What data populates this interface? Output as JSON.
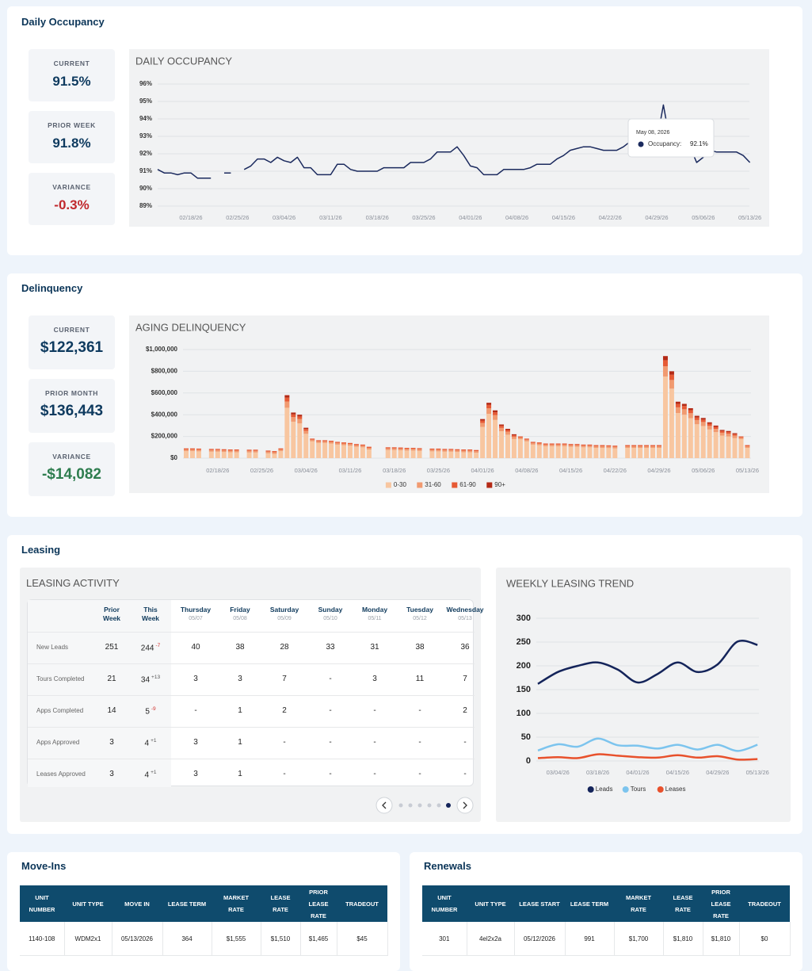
{
  "occupancy": {
    "title": "Daily Occupancy",
    "stats": [
      {
        "label": "CURRENT",
        "value": "91.5%"
      },
      {
        "label": "PRIOR WEEK",
        "value": "91.8%"
      },
      {
        "label": "VARIANCE",
        "value": "-0.3%"
      }
    ],
    "chart": {
      "type": "line",
      "title": "DAILY OCCUPANCY",
      "categories": [
        null,
        null,
        null,
        null,
        null,
        "02/18/26",
        null,
        null,
        null,
        null,
        null,
        null,
        "02/25/26",
        null,
        null,
        null,
        null,
        null,
        null,
        "03/04/26",
        null,
        null,
        null,
        null,
        null,
        null,
        "03/11/26",
        null,
        null,
        null,
        null,
        null,
        null,
        "03/18/26",
        null,
        null,
        null,
        null,
        null,
        null,
        "03/25/26",
        null,
        null,
        null,
        null,
        null,
        null,
        "04/01/26",
        null,
        null,
        null,
        null,
        null,
        null,
        "04/08/26",
        null,
        null,
        null,
        null,
        null,
        null,
        "04/15/26",
        null,
        null,
        null,
        null,
        null,
        null,
        "04/22/26",
        null,
        null,
        null,
        null,
        null,
        null,
        "04/29/26",
        null,
        null,
        null,
        null,
        null,
        null,
        "05/06/26",
        null,
        null,
        null,
        null,
        null,
        null,
        "05/13/26"
      ],
      "values": [
        91.1,
        90.9,
        90.9,
        90.8,
        90.9,
        90.9,
        90.6,
        90.6,
        90.6,
        null,
        90.9,
        90.9,
        null,
        91.1,
        91.3,
        91.7,
        91.7,
        91.5,
        91.8,
        91.6,
        91.5,
        91.8,
        91.2,
        91.2,
        90.8,
        90.8,
        90.8,
        91.4,
        91.4,
        91.1,
        91.0,
        91.0,
        91.0,
        91.0,
        91.2,
        91.2,
        91.2,
        91.2,
        91.5,
        91.5,
        91.5,
        91.7,
        92.1,
        92.1,
        92.1,
        92.4,
        91.9,
        91.3,
        91.2,
        90.8,
        90.8,
        90.8,
        91.1,
        91.1,
        91.1,
        91.1,
        91.2,
        91.4,
        91.4,
        91.4,
        91.7,
        91.9,
        92.2,
        92.3,
        92.4,
        92.4,
        92.3,
        92.2,
        92.2,
        92.2,
        92.4,
        92.7,
        92.6,
        92.4,
        92.6,
        92.7,
        94.8,
        92.7,
        92.6,
        92.8,
        92.4,
        91.5,
        91.8,
        92.2,
        92.1,
        92.1,
        92.1,
        92.1,
        91.9,
        91.5
      ],
      "color": "#1b2a5e",
      "ylim": [
        89,
        96
      ],
      "yticks": [
        {
          "value": 89,
          "label": "89%"
        },
        {
          "value": 90,
          "label": "90%"
        },
        {
          "value": 91,
          "label": "91%"
        },
        {
          "value": 92,
          "label": "92%"
        },
        {
          "value": 93,
          "label": "93%"
        },
        {
          "value": 94,
          "label": "94%"
        },
        {
          "value": 95,
          "label": "95%"
        },
        {
          "value": 96,
          "label": "96%"
        }
      ],
      "grid": true,
      "tooltip": {
        "date": "May 08, 2026",
        "label": "Occupancy:",
        "value": "92.1%"
      }
    }
  },
  "delinquency": {
    "title": "Delinquency",
    "stats": [
      {
        "label": "CURRENT",
        "value": "$122,361"
      },
      {
        "label": "PRIOR MONTH",
        "value": "$136,443"
      },
      {
        "label": "VARIANCE",
        "value": "-$14,082"
      }
    ],
    "chart": {
      "type": "stacked-bar",
      "title": "AGING DELINQUENCY",
      "categories": [
        null,
        null,
        null,
        null,
        null,
        "02/18/26",
        null,
        null,
        null,
        null,
        null,
        null,
        "02/25/26",
        null,
        null,
        null,
        null,
        null,
        null,
        "03/04/26",
        null,
        null,
        null,
        null,
        null,
        null,
        "03/11/26",
        null,
        null,
        null,
        null,
        null,
        null,
        "03/18/26",
        null,
        null,
        null,
        null,
        null,
        null,
        "03/25/26",
        null,
        null,
        null,
        null,
        null,
        null,
        "04/01/26",
        null,
        null,
        null,
        null,
        null,
        null,
        "04/08/26",
        null,
        null,
        null,
        null,
        null,
        null,
        "04/15/26",
        null,
        null,
        null,
        null,
        null,
        null,
        "04/22/26",
        null,
        null,
        null,
        null,
        null,
        null,
        "04/29/26",
        null,
        null,
        null,
        null,
        null,
        null,
        "05/06/26",
        null,
        null,
        null,
        null,
        null,
        null,
        "05/13/26"
      ],
      "series": [
        {
          "name": "0-30",
          "color": "#f8c6a0",
          "values": [
            65000,
            65000,
            63000,
            null,
            60000,
            60000,
            57000,
            55000,
            55000,
            null,
            53000,
            53000,
            null,
            45000,
            40000,
            65000,
            464000,
            336000,
            320000,
            224000,
            155000,
            140000,
            140000,
            135000,
            125000,
            120000,
            115000,
            105000,
            100000,
            80000,
            null,
            null,
            75000,
            75000,
            73000,
            70000,
            70000,
            67000,
            null,
            63000,
            63000,
            60000,
            60000,
            57000,
            55000,
            55000,
            50000,
            288000,
            408000,
            352000,
            248000,
            216000,
            176000,
            175000,
            155000,
            125000,
            120000,
            110000,
            110000,
            110000,
            110000,
            105000,
            105000,
            100000,
            100000,
            95000,
            95000,
            93000,
            90000,
            null,
            95000,
            95000,
            95000,
            95000,
            95000,
            95000,
            752000,
            640000,
            416000,
            400000,
            368000,
            312000,
            296000,
            264000,
            240000,
            208000,
            200000,
            184000,
            175000,
            95000
          ]
        },
        {
          "name": "31-60",
          "color": "#f19a70",
          "values": [
            15000,
            15000,
            15000,
            null,
            15000,
            15000,
            15000,
            15000,
            15000,
            null,
            15000,
            15000,
            null,
            15000,
            15000,
            15000,
            58000,
            42000,
            40000,
            28000,
            15000,
            15000,
            15000,
            15000,
            15000,
            15000,
            15000,
            15000,
            15000,
            15000,
            null,
            null,
            15000,
            15000,
            15000,
            15000,
            15000,
            15000,
            null,
            15000,
            15000,
            15000,
            15000,
            15000,
            15000,
            15000,
            15000,
            36000,
            51000,
            44000,
            31000,
            27000,
            22000,
            15000,
            15000,
            15000,
            15000,
            15000,
            15000,
            15000,
            15000,
            15000,
            15000,
            15000,
            15000,
            15000,
            15000,
            15000,
            15000,
            null,
            15000,
            15000,
            15000,
            15000,
            15000,
            15000,
            94000,
            80000,
            52000,
            50000,
            46000,
            39000,
            37000,
            33000,
            30000,
            26000,
            25000,
            23000,
            15000,
            15000
          ]
        },
        {
          "name": "61-90",
          "color": "#e65a35",
          "values": [
            10000,
            10000,
            10000,
            null,
            10000,
            10000,
            10000,
            10000,
            10000,
            null,
            10000,
            10000,
            null,
            10000,
            10000,
            10000,
            35000,
            25000,
            24000,
            17000,
            10000,
            10000,
            10000,
            10000,
            10000,
            10000,
            10000,
            10000,
            10000,
            10000,
            null,
            null,
            10000,
            10000,
            10000,
            10000,
            10000,
            10000,
            null,
            10000,
            10000,
            10000,
            10000,
            10000,
            10000,
            10000,
            10000,
            22000,
            31000,
            26000,
            19000,
            16000,
            13000,
            10000,
            10000,
            10000,
            10000,
            10000,
            10000,
            10000,
            10000,
            10000,
            10000,
            10000,
            10000,
            10000,
            10000,
            10000,
            10000,
            null,
            10000,
            10000,
            10000,
            10000,
            10000,
            10000,
            56000,
            48000,
            31000,
            30000,
            28000,
            23000,
            22000,
            20000,
            18000,
            16000,
            15000,
            14000,
            10000,
            10000
          ]
        },
        {
          "name": "90+",
          "color": "#b42a16",
          "values": [
            0,
            0,
            0,
            null,
            0,
            0,
            0,
            0,
            0,
            null,
            0,
            0,
            null,
            0,
            0,
            0,
            23000,
            17000,
            16000,
            11000,
            0,
            0,
            0,
            0,
            0,
            0,
            0,
            0,
            0,
            0,
            null,
            null,
            0,
            0,
            0,
            0,
            0,
            0,
            null,
            0,
            0,
            0,
            0,
            0,
            0,
            0,
            0,
            14000,
            20000,
            18000,
            12000,
            11000,
            9000,
            0,
            0,
            0,
            0,
            0,
            0,
            0,
            0,
            0,
            0,
            0,
            0,
            0,
            0,
            0,
            0,
            null,
            0,
            0,
            0,
            0,
            0,
            0,
            38000,
            32000,
            21000,
            20000,
            18000,
            16000,
            15000,
            13000,
            12000,
            10000,
            10000,
            9000,
            0,
            0
          ]
        }
      ],
      "ylim": [
        0,
        1000000
      ],
      "yticks": [
        {
          "value": 0,
          "label": "$0"
        },
        {
          "value": 200000,
          "label": "$200,000"
        },
        {
          "value": 400000,
          "label": "$400,000"
        },
        {
          "value": 600000,
          "label": "$600,000"
        },
        {
          "value": 800000,
          "label": "$800,000"
        },
        {
          "value": 1000000,
          "label": "$1,000,000"
        }
      ],
      "grid": true,
      "legend": "bottom"
    }
  },
  "leasing": {
    "title": "Leasing",
    "activity": {
      "title": "LEASING ACTIVITY",
      "columns": [
        {
          "name": "Prior Week"
        },
        {
          "name": "This Week"
        },
        {
          "name": "Thursday",
          "date": "05/07"
        },
        {
          "name": "Friday",
          "date": "05/08"
        },
        {
          "name": "Saturday",
          "date": "05/09"
        },
        {
          "name": "Sunday",
          "date": "05/10"
        },
        {
          "name": "Monday",
          "date": "05/11"
        },
        {
          "name": "Tuesday",
          "date": "05/12"
        },
        {
          "name": "Wednesday",
          "date": "05/13"
        }
      ],
      "rows": [
        {
          "label": "New Leads",
          "values": [
            251,
            244,
            40,
            38,
            28,
            33,
            31,
            38,
            36
          ],
          "change": "-7"
        },
        {
          "label": "Tours Completed",
          "values": [
            21,
            34,
            3,
            3,
            7,
            "-",
            3,
            11,
            7
          ],
          "change": "+13"
        },
        {
          "label": "Apps Completed",
          "values": [
            14,
            5,
            "-",
            1,
            2,
            "-",
            "-",
            "-",
            2
          ],
          "change": "-9"
        },
        {
          "label": "Apps Approved",
          "values": [
            3,
            4,
            3,
            1,
            "-",
            "-",
            "-",
            "-",
            "-"
          ],
          "change": "+1"
        },
        {
          "label": "Leases Approved",
          "values": [
            3,
            4,
            3,
            1,
            "-",
            "-",
            "-",
            "-",
            "-"
          ],
          "change": "+1"
        }
      ]
    },
    "trend": {
      "type": "line",
      "title": "WEEKLY LEASING TREND",
      "categories": [
        null,
        "03/04/26",
        null,
        "03/18/26",
        null,
        "04/01/26",
        null,
        "04/15/26",
        null,
        "04/29/26",
        null,
        "05/13/26"
      ],
      "series": [
        {
          "name": "Leads",
          "color": "#14245a",
          "values": [
            162,
            187,
            200,
            207,
            192,
            165,
            183,
            207,
            187,
            203,
            251,
            244
          ]
        },
        {
          "name": "Tours",
          "color": "#7cc4ee",
          "values": [
            22,
            35,
            30,
            47,
            33,
            32,
            26,
            34,
            24,
            34,
            21,
            34
          ]
        },
        {
          "name": "Leases",
          "color": "#e8512c",
          "values": [
            6,
            8,
            6,
            14,
            11,
            8,
            7,
            12,
            7,
            10,
            3,
            4
          ]
        }
      ],
      "ylim": [
        0,
        300
      ],
      "yticks": [
        0,
        50,
        100,
        150,
        200,
        250,
        300
      ],
      "grid": true,
      "smooth": true,
      "legend": "bottom"
    }
  },
  "moveins": {
    "title": "Move-Ins",
    "columns": [
      "UNIT NUMBER",
      "UNIT TYPE",
      "MOVE IN",
      "LEASE TERM",
      "MARKET RATE",
      "LEASE RATE",
      "PRIOR LEASE RATE",
      "TRADEOUT"
    ],
    "rows": [
      [
        "1140-108",
        "WDM2x1",
        "05/13/2026",
        364,
        "$1,555",
        "$1,510",
        "$1,465",
        "$45"
      ]
    ]
  },
  "renewals": {
    "title": "Renewals",
    "columns": [
      "UNIT NUMBER",
      "UNIT TYPE",
      "LEASE START",
      "LEASE TERM",
      "MARKET RATE",
      "LEASE RATE",
      "PRIOR LEASE RATE",
      "TRADEOUT"
    ],
    "rows": [
      [
        301,
        "4el2x2a",
        "05/12/2026",
        991,
        "$1,700",
        "$1,810",
        "$1,810",
        "$0"
      ]
    ]
  }
}
